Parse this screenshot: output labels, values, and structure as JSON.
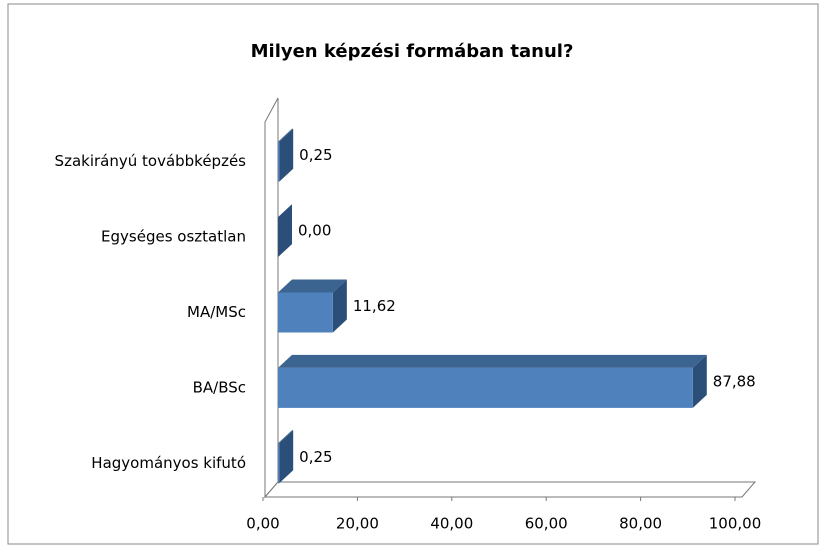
{
  "chart_data": {
    "type": "bar3d",
    "orientation": "horizontal",
    "title": "Milyen képzési formában tanul?",
    "categories": [
      "Hagyományos kifutó",
      "BA/BSc",
      "MA/MSc",
      "Egységes osztatlan",
      "Szakirányú továbbképzés"
    ],
    "values": [
      0.25,
      87.88,
      11.62,
      0,
      0.25
    ],
    "value_labels": [
      "0,25",
      "87,88",
      "11,62",
      "0,00",
      "0,25"
    ],
    "color": "#4f81bd",
    "xlim": [
      0,
      100
    ],
    "xticks": [
      {
        "value": 0,
        "label": "0,00"
      },
      {
        "value": 20,
        "label": "20,00"
      },
      {
        "value": 40,
        "label": "40,00"
      },
      {
        "value": 60,
        "label": "60,00"
      },
      {
        "value": 80,
        "label": "80,00"
      },
      {
        "value": 100,
        "label": "100,00"
      }
    ]
  }
}
